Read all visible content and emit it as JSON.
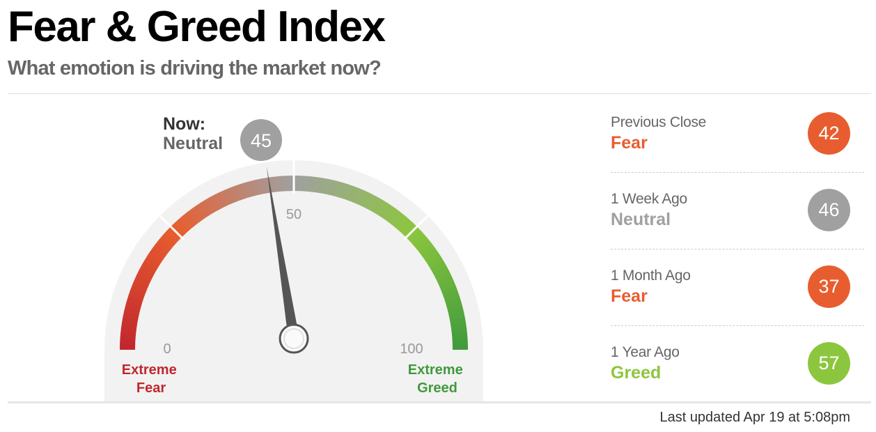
{
  "header": {
    "title": "Fear & Greed Index",
    "subtitle": "What emotion is driving the market now?"
  },
  "gauge": {
    "now_title": "Now:",
    "now_rating": "Neutral",
    "now_value": 45,
    "min_label": "0",
    "mid_label": "50",
    "max_label": "100",
    "left_end_label": [
      "Extreme",
      "Fear"
    ],
    "right_end_label": [
      "Extreme",
      "Greed"
    ],
    "colors": {
      "fear": "#e85d2f",
      "extreme_fear": "#c0272d",
      "neutral": "#a0a0a0",
      "greed": "#8cc63e",
      "extreme_greed": "#3f9a3c",
      "needle": "#555555",
      "face": "#f2f2f2"
    }
  },
  "history": [
    {
      "label": "Previous Close",
      "rating": "Fear",
      "value": "42",
      "color": "#e85d2f"
    },
    {
      "label": "1 Week Ago",
      "rating": "Neutral",
      "value": "46",
      "color": "#a0a0a0"
    },
    {
      "label": "1 Month Ago",
      "rating": "Fear",
      "value": "37",
      "color": "#e85d2f"
    },
    {
      "label": "1 Year Ago",
      "rating": "Greed",
      "value": "57",
      "color": "#8cc63e"
    }
  ],
  "footer": {
    "last_updated": "Last updated Apr 19 at 5:08pm"
  }
}
